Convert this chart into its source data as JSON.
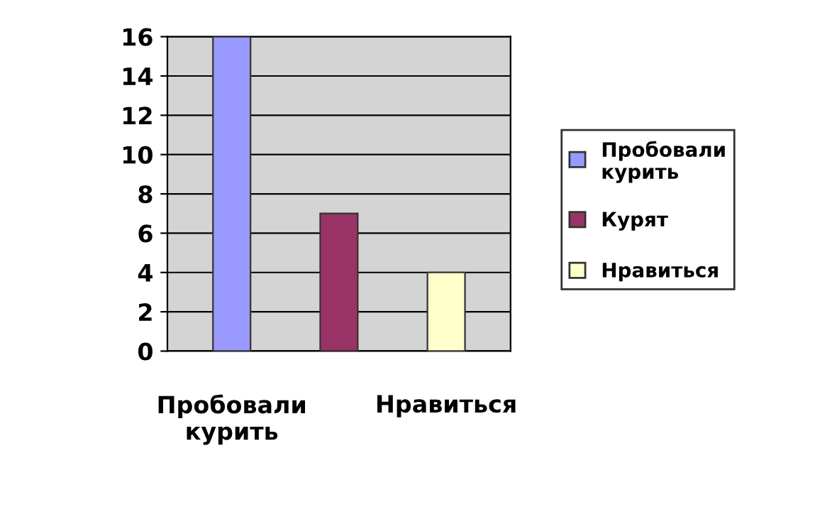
{
  "chart_data": {
    "type": "bar",
    "categories": [
      "Пробовали курить",
      null,
      "Нравиться"
    ],
    "series": [
      {
        "name": "Пробовали курить",
        "color": "#9999ff",
        "values": [
          16,
          null,
          null
        ]
      },
      {
        "name": "Курят",
        "color": "#993366",
        "values": [
          null,
          7,
          null
        ]
      },
      {
        "name": "Нравиться",
        "color": "#ffffcc",
        "values": [
          null,
          null,
          4
        ]
      }
    ],
    "ylim": [
      0,
      16
    ],
    "yticks": [
      0,
      2,
      4,
      6,
      8,
      10,
      12,
      14,
      16
    ],
    "grid": "y",
    "legend": "right"
  }
}
